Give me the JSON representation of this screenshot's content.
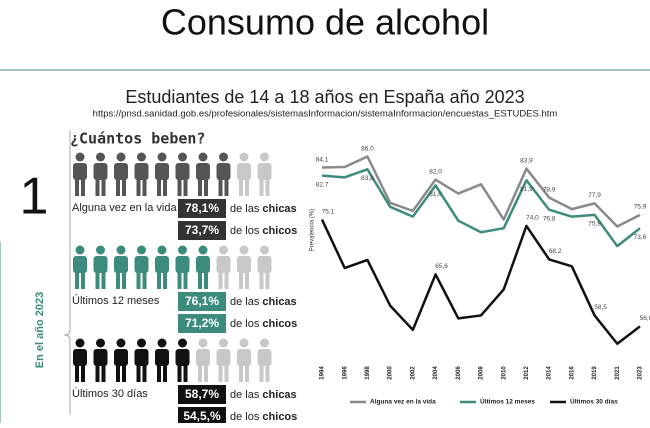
{
  "header": {
    "title": "Consumo de alcohol",
    "subtitle": "Estudiantes de 14 a 18 años en España año 2023",
    "source": "https://pnsd.sanidad.gob.es/profesionales/sistemasInformacion/sistemaInformacion/encuestas_ESTUDES.htm"
  },
  "panel": {
    "question": "¿Cuántos beben?",
    "number": "1",
    "side_label": "En el año 2023",
    "rows": [
      {
        "label": "Alguna vez en la vida",
        "girls_value": "78,1%",
        "girls_text": [
          "de las",
          "chicas"
        ],
        "boys_value": "73,7%",
        "boys_text": [
          "de los",
          "chicos"
        ]
      },
      {
        "label": "Últimos 12 meses",
        "girls_value": "76,1%",
        "girls_text": [
          "de las",
          "chicas"
        ],
        "boys_value": "71,2%",
        "boys_text": [
          "de los",
          "chicos"
        ]
      },
      {
        "label": "Últimos 30 días",
        "girls_value": "58,7%",
        "girls_text": [
          "de las",
          "chicas"
        ],
        "boys_value": "54,5,%",
        "boys_text": [
          "de los",
          "chicos"
        ]
      }
    ]
  },
  "chart_data": {
    "type": "line",
    "y_label": "Prevalencia (%)",
    "categories": [
      "1994",
      "1996",
      "1998",
      "2000",
      "2002",
      "2004",
      "2006",
      "2008",
      "2010",
      "2012",
      "2014",
      "2016",
      "2019",
      "2021",
      "2023"
    ],
    "ylim": [
      52,
      88
    ],
    "series": [
      {
        "name": "Alguna vez en la vida",
        "color": "#8a8a8a",
        "values": [
          84.1,
          84.2,
          86.0,
          78.0,
          76.6,
          82.0,
          79.6,
          81.2,
          75.1,
          83.9,
          78.9,
          76.9,
          77.9,
          73.9,
          75.9
        ],
        "value_labels": [
          "84,1",
          null,
          "86,0",
          null,
          null,
          "82,0",
          null,
          null,
          null,
          "83,9",
          "78,9",
          null,
          "77,9",
          null,
          "75,9"
        ]
      },
      {
        "name": "Últimos 12 meses",
        "color": "#3d8b7d",
        "values": [
          82.7,
          82.4,
          83.8,
          77.3,
          75.6,
          81.0,
          74.9,
          72.9,
          73.6,
          81.9,
          76.8,
          75.6,
          75.9,
          70.5,
          73.6
        ],
        "value_labels": [
          "82,7",
          null,
          "83,8",
          null,
          null,
          "81,0",
          null,
          null,
          null,
          "81,9",
          "76,8",
          null,
          "75,9",
          null,
          "73,6"
        ]
      },
      {
        "name": "Últimos 30 días",
        "color": "#111111",
        "values": [
          75.1,
          66.7,
          68.1,
          60.2,
          56.0,
          65.6,
          58.0,
          58.5,
          63.0,
          74.0,
          68.2,
          67.0,
          58.5,
          53.6,
          56.6
        ],
        "value_labels": [
          "75,1",
          null,
          null,
          null,
          null,
          "65,6",
          null,
          null,
          null,
          "74,0",
          "68,2",
          null,
          "58,5",
          null,
          "56,6"
        ]
      }
    ]
  }
}
